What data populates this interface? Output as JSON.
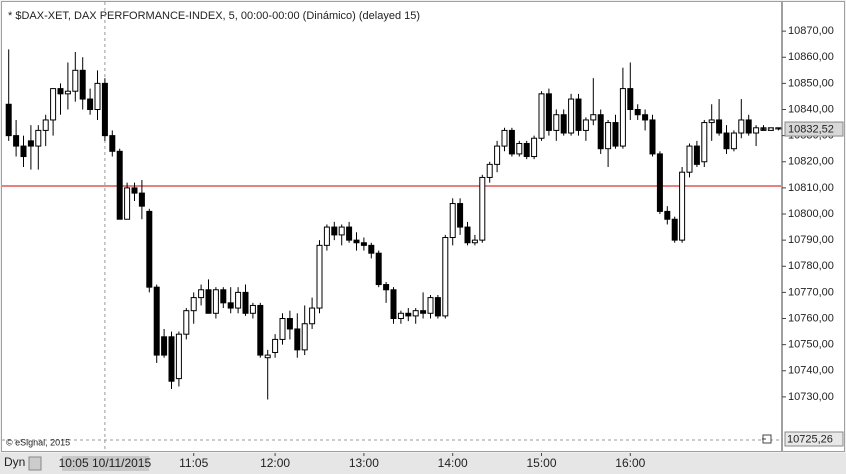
{
  "chart_data": {
    "type": "candlestick",
    "title": "* $DAX-XET, DAX PERFORMANCE-INDEX, 5, 00:00-00:00 (Dinámico) (delayed 15)",
    "x": [
      "09:00",
      "09:05",
      "09:10",
      "09:15",
      "09:20",
      "09:25",
      "09:30",
      "09:35",
      "09:40",
      "09:45",
      "09:50",
      "09:55",
      "10:00",
      "10:05",
      "10:10",
      "10:15",
      "10:20",
      "10:25",
      "10:30",
      "10:35",
      "10:40",
      "10:45",
      "10:50",
      "10:55",
      "11:00",
      "11:05",
      "11:10",
      "11:15",
      "11:20",
      "11:25",
      "11:30",
      "11:35",
      "11:40",
      "11:45",
      "11:50",
      "11:55",
      "12:00",
      "12:05",
      "12:10",
      "12:15",
      "12:20",
      "12:25",
      "12:30",
      "12:35",
      "12:40",
      "12:45",
      "12:50",
      "12:55",
      "13:00",
      "13:05",
      "13:10",
      "13:15",
      "13:20",
      "13:25",
      "13:30",
      "13:35",
      "13:40",
      "13:45",
      "13:50",
      "13:55",
      "14:00",
      "14:05",
      "14:10",
      "14:15",
      "14:20",
      "14:25",
      "14:30",
      "14:35",
      "14:40",
      "14:45",
      "14:50",
      "14:55",
      "15:00",
      "15:05",
      "15:10",
      "15:15",
      "15:20",
      "15:25",
      "15:30",
      "15:35",
      "15:40",
      "15:45",
      "15:50",
      "15:55",
      "16:00",
      "16:05",
      "16:10",
      "16:15",
      "16:20",
      "16:25",
      "16:30",
      "16:35",
      "16:40",
      "16:45",
      "16:50",
      "16:55",
      "17:00",
      "17:05",
      "17:10",
      "17:15",
      "17:20",
      "17:25",
      "17:30",
      "17:35",
      "17:40"
    ],
    "open": [
      10842,
      10830,
      10826,
      10828,
      10826,
      10832,
      10836,
      10848,
      10846,
      10847,
      10855,
      10844,
      10840,
      10850,
      10830,
      10824,
      10798,
      10810,
      10808,
      10801,
      10772,
      10753,
      10753,
      10737,
      10754,
      10763,
      10768,
      10771,
      10762,
      10771,
      10766,
      10764,
      10770,
      10762,
      10765,
      10745,
      10747,
      10752,
      10760,
      10756,
      10748,
      10758,
      10764,
      10788,
      10795,
      10792,
      10795,
      10790,
      10789,
      10788,
      10785,
      10773,
      10771,
      10760,
      10762,
      10761,
      10763,
      10762,
      10768,
      10761,
      10791,
      10804,
      10795,
      10789,
      10790,
      10814,
      10819,
      10826,
      10832,
      10823,
      10827,
      10822,
      10829,
      10846,
      10832,
      10838,
      10831,
      10844,
      10832,
      10836,
      10838,
      10825,
      10835,
      10826,
      10848,
      10840,
      10838,
      10836,
      10823,
      10801,
      10798,
      10790,
      10816,
      10826,
      10820,
      10835,
      10836,
      10831,
      10825,
      10831,
      10836,
      10831,
      10833,
      10832,
      10833
    ],
    "high": [
      10863,
      10836,
      10830,
      10834,
      10834,
      10838,
      10848,
      10850,
      10858,
      10862,
      10860,
      10848,
      10855,
      10852,
      10832,
      10825,
      10812,
      10812,
      10813,
      10802,
      10773,
      10756,
      10755,
      10755,
      10764,
      10770,
      10773,
      10775,
      10772,
      10772,
      10772,
      10772,
      10773,
      10766,
      10766,
      10748,
      10754,
      10762,
      10763,
      10762,
      10765,
      10768,
      10790,
      10796,
      10797,
      10796,
      10797,
      10793,
      10791,
      10789,
      10786,
      10774,
      10772,
      10763,
      10764,
      10764,
      10770,
      10769,
      10769,
      10792,
      10806,
      10806,
      10797,
      10792,
      10815,
      10820,
      10828,
      10833,
      10833,
      10828,
      10828,
      10830,
      10847,
      10848,
      10840,
      10840,
      10846,
      10846,
      10837,
      10852,
      10840,
      10836,
      10838,
      10856,
      10858,
      10842,
      10840,
      10838,
      10824,
      10803,
      10799,
      10818,
      10827,
      10828,
      10836,
      10842,
      10844,
      10834,
      10832,
      10844,
      10838,
      10834,
      10834,
      10833,
      10833
    ],
    "low": [
      10828,
      10822,
      10818,
      10817,
      10817,
      10826,
      10830,
      10838,
      10840,
      10843,
      10840,
      10838,
      10836,
      10828,
      10822,
      10798,
      10798,
      10805,
      10798,
      10770,
      10743,
      10745,
      10733,
      10734,
      10752,
      10758,
      10765,
      10762,
      10760,
      10764,
      10762,
      10762,
      10761,
      10760,
      10745,
      10729,
      10745,
      10750,
      10752,
      10745,
      10746,
      10756,
      10762,
      10786,
      10790,
      10788,
      10789,
      10786,
      10786,
      10783,
      10772,
      10766,
      10758,
      10758,
      10759,
      10758,
      10760,
      10760,
      10760,
      10760,
      10788,
      10792,
      10788,
      10788,
      10789,
      10812,
      10816,
      10824,
      10822,
      10822,
      10821,
      10821,
      10828,
      10830,
      10828,
      10830,
      10830,
      10830,
      10828,
      10834,
      10823,
      10818,
      10825,
      10825,
      10836,
      10836,
      10832,
      10822,
      10800,
      10796,
      10789,
      10789,
      10814,
      10818,
      10818,
      10828,
      10830,
      10823,
      10824,
      10829,
      10830,
      10826,
      10832,
      10832,
      10832
    ],
    "close": [
      10830,
      10826,
      10822,
      10826,
      10832,
      10836,
      10848,
      10846,
      10847,
      10855,
      10844,
      10840,
      10850,
      10830,
      10824,
      10798,
      10810,
      10808,
      10803,
      10772,
      10746,
      10746,
      10736,
      10754,
      10763,
      10768,
      10771,
      10762,
      10771,
      10766,
      10764,
      10770,
      10762,
      10765,
      10746,
      10746,
      10752,
      10760,
      10756,
      10748,
      10758,
      10764,
      10788,
      10795,
      10792,
      10795,
      10790,
      10789,
      10788,
      10785,
      10773,
      10771,
      10760,
      10762,
      10761,
      10763,
      10762,
      10768,
      10761,
      10791,
      10804,
      10795,
      10789,
      10790,
      10814,
      10819,
      10826,
      10832,
      10823,
      10827,
      10822,
      10829,
      10846,
      10832,
      10838,
      10831,
      10844,
      10832,
      10836,
      10838,
      10825,
      10835,
      10826,
      10848,
      10840,
      10838,
      10836,
      10823,
      10801,
      10798,
      10790,
      10816,
      10826,
      10819,
      10835,
      10836,
      10831,
      10825,
      10831,
      10836,
      10831,
      10833,
      10832,
      10833,
      10832.52
    ],
    "up_color": "#ffffff",
    "down_color": "#000000",
    "ylim": [
      10713.5,
      10880
    ],
    "yticks": [
      {
        "value": 10730,
        "label": "10730,00"
      },
      {
        "value": 10740,
        "label": "10740,00"
      },
      {
        "value": 10750,
        "label": "10750,00"
      },
      {
        "value": 10760,
        "label": "10760,00"
      },
      {
        "value": 10770,
        "label": "10770,00"
      },
      {
        "value": 10780,
        "label": "10780,00"
      },
      {
        "value": 10790,
        "label": "10790,00"
      },
      {
        "value": 10800,
        "label": "10800,00"
      },
      {
        "value": 10810,
        "label": "10810,00"
      },
      {
        "value": 10820,
        "label": "10820,00"
      },
      {
        "value": 10830,
        "label": "10830,00"
      },
      {
        "value": 10840,
        "label": "10840,00"
      },
      {
        "value": 10850,
        "label": "10850,00"
      },
      {
        "value": 10860,
        "label": "10860,00"
      },
      {
        "value": 10870,
        "label": "10870,00"
      }
    ],
    "xticks": [
      "11:05",
      "12:00",
      "13:00",
      "14:00",
      "15:00",
      "16:00"
    ],
    "last_price": {
      "value": 10832.52,
      "label": "10832,52"
    },
    "reference_line": {
      "value": 10810.7,
      "color": "#d00000"
    },
    "crosshair": {
      "x": "10:05",
      "label": "10:05 10/11/2015",
      "price_label": "10725,26"
    },
    "copyright": "© eSignal, 2015",
    "mode_label": "Dyn"
  }
}
